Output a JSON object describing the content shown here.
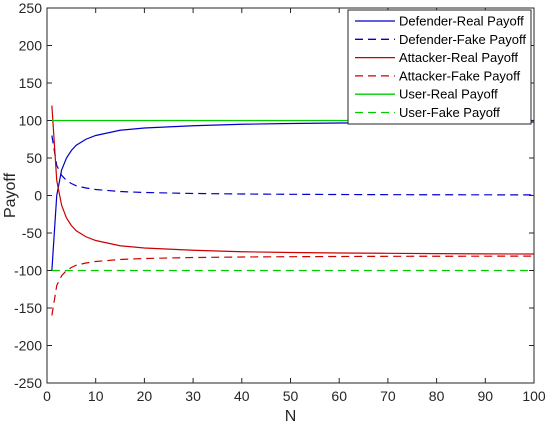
{
  "chart_data": {
    "type": "line",
    "title": "",
    "xlabel": "N",
    "ylabel": "Payoff",
    "xlim": [
      0,
      100
    ],
    "ylim": [
      -250,
      250
    ],
    "xticks": [
      0,
      10,
      20,
      30,
      40,
      50,
      60,
      70,
      80,
      90,
      100
    ],
    "yticks": [
      -250,
      -200,
      -150,
      -100,
      -50,
      0,
      50,
      100,
      150,
      200,
      250
    ],
    "grid": false,
    "legend_position": "top-right",
    "series": [
      {
        "name": "Defender-Real Payoff",
        "color": "#0000CC",
        "dash": "solid",
        "x": [
          1,
          2,
          3,
          4,
          5,
          6,
          8,
          10,
          15,
          20,
          30,
          40,
          50,
          60,
          70,
          80,
          90,
          100
        ],
        "y": [
          -100,
          0,
          34,
          50,
          60,
          67,
          75,
          80,
          87,
          90,
          93,
          95,
          96,
          96.7,
          97.1,
          97.5,
          97.8,
          98
        ]
      },
      {
        "name": "Defender-Fake Payoff",
        "color": "#0000CC",
        "dash": "dashed",
        "x": [
          1,
          2,
          3,
          4,
          5,
          6,
          8,
          10,
          15,
          20,
          30,
          40,
          50,
          60,
          70,
          80,
          90,
          100
        ],
        "y": [
          80,
          40,
          27,
          20,
          16,
          13,
          10,
          8,
          5.3,
          4,
          2.7,
          2,
          1.6,
          1.3,
          1.1,
          1,
          0.9,
          0.8
        ]
      },
      {
        "name": "Attacker-Real Payoff",
        "color": "#CC0000",
        "dash": "solid",
        "x": [
          1,
          2,
          3,
          4,
          5,
          6,
          8,
          10,
          15,
          20,
          30,
          40,
          50,
          60,
          70,
          80,
          90,
          100
        ],
        "y": [
          120,
          20,
          -13,
          -30,
          -40,
          -47,
          -55,
          -60,
          -67,
          -70,
          -73,
          -75,
          -76,
          -76.7,
          -77.1,
          -77.5,
          -77.8,
          -78
        ]
      },
      {
        "name": "Attacker-Fake Payoff",
        "color": "#CC0000",
        "dash": "dashed",
        "x": [
          1,
          2,
          3,
          4,
          5,
          6,
          8,
          10,
          15,
          20,
          30,
          40,
          50,
          60,
          70,
          80,
          90,
          100
        ],
        "y": [
          -160,
          -120,
          -107,
          -100,
          -96,
          -93,
          -90,
          -88,
          -85.3,
          -84,
          -82.7,
          -82,
          -81.6,
          -81.3,
          -81.1,
          -81,
          -80.9,
          -80.8
        ]
      },
      {
        "name": "User-Real Payoff",
        "color": "#00CC00",
        "dash": "solid",
        "x": [
          1,
          100
        ],
        "y": [
          100,
          100
        ]
      },
      {
        "name": "User-Fake Payoff",
        "color": "#00CC00",
        "dash": "dashed",
        "x": [
          1,
          100
        ],
        "y": [
          -100,
          -100
        ]
      }
    ]
  }
}
